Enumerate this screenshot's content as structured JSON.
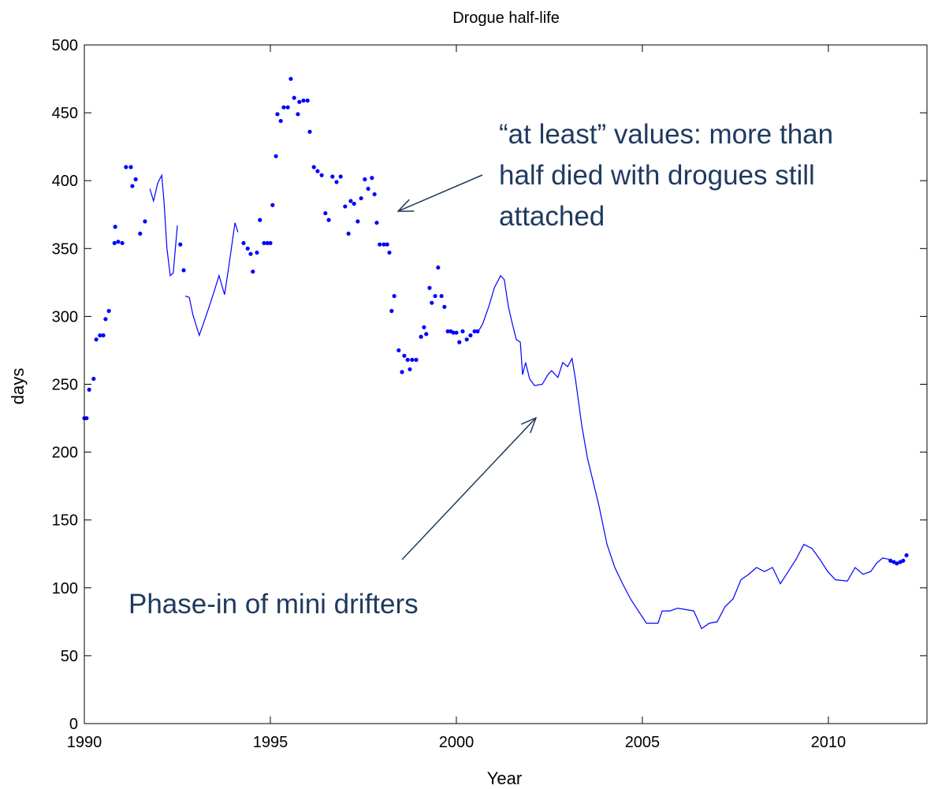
{
  "chart_data": {
    "type": "line",
    "title": "Drogue half-life",
    "xlabel": "Year",
    "ylabel": "days",
    "xlim": [
      1990,
      2012.65
    ],
    "ylim": [
      0,
      500
    ],
    "xticks": [
      1990,
      1995,
      2000,
      2005,
      2010
    ],
    "yticks": [
      0,
      50,
      100,
      150,
      200,
      250,
      300,
      350,
      400,
      450,
      500
    ],
    "grid": false,
    "series": [
      {
        "style": "line",
        "color": "#0000ff",
        "x": [
          1991.76,
          1991.86,
          1991.97,
          1992.08,
          1992.14,
          1992.22,
          1992.31,
          1992.39,
          1992.5,
          null,
          1992.71,
          1992.82,
          1992.92,
          1993.09,
          1993.28,
          1993.45,
          1993.62,
          1993.77,
          1993.88,
          1994.05,
          1994.13,
          null,
          2000.59,
          2000.7,
          2000.87,
          2001.02,
          2001.19,
          2001.29,
          2001.4,
          2001.5,
          2001.61,
          2001.72,
          2001.78,
          2001.86,
          2001.97,
          2002.1,
          2002.31,
          2002.46,
          2002.56,
          2002.73,
          2002.86,
          2002.99,
          2003.11,
          2003.2,
          2003.37,
          2003.52,
          2003.67,
          2003.83,
          2004.05,
          2004.26,
          2004.47,
          2004.68,
          2004.89,
          2005.11,
          2005.42,
          2005.53,
          2005.74,
          2005.95,
          2006.17,
          2006.38,
          2006.48,
          2006.59,
          2006.8,
          2007.01,
          2007.22,
          2007.44,
          2007.65,
          2007.86,
          2008.07,
          2008.28,
          2008.5,
          2008.71,
          2008.92,
          2009.13,
          2009.34,
          2009.56,
          2009.77,
          2009.98,
          2010.19,
          2010.51,
          2010.72,
          2010.93,
          2011.14,
          2011.29,
          2011.46,
          2011.63
        ],
        "values": [
          394,
          385,
          398,
          404,
          385,
          350,
          330,
          332,
          367,
          null,
          315,
          314,
          301,
          286,
          301,
          315,
          330,
          316,
          336,
          369,
          362,
          null,
          289,
          294,
          307,
          321,
          330,
          327,
          307,
          295,
          283,
          281,
          257,
          266,
          254,
          249,
          250,
          257,
          260,
          255,
          266,
          263,
          269,
          254,
          220,
          196,
          179,
          161,
          132,
          115,
          103,
          92,
          83,
          74,
          74,
          83,
          83,
          85,
          84,
          83,
          77,
          70,
          74,
          75,
          86,
          92,
          106,
          110,
          115,
          112,
          115,
          103,
          112,
          121,
          132,
          129,
          121,
          112,
          106,
          105,
          115,
          110,
          112,
          118,
          122,
          121
        ]
      },
      {
        "style": "markers",
        "color": "#0000ff",
        "x": [
          1990.0,
          1990.06,
          1990.13,
          1990.25,
          1990.32,
          1990.42,
          1990.51,
          1990.57,
          1990.66,
          1990.81,
          1990.83,
          1990.91,
          1991.02,
          1991.12,
          1991.25,
          1991.29,
          1991.38,
          1991.5,
          1991.63,
          1992.58,
          1992.67,
          1994.28,
          1994.39,
          1994.47,
          1994.53,
          1994.64,
          1994.72,
          1994.83,
          1994.92,
          1995.0,
          1995.06,
          1995.15,
          1995.19,
          1995.28,
          1995.36,
          1995.47,
          1995.55,
          1995.64,
          1995.74,
          1995.78,
          1995.89,
          1996.0,
          1996.06,
          1996.17,
          1996.27,
          1996.38,
          1996.48,
          1996.57,
          1996.67,
          1996.78,
          1996.89,
          1997.01,
          1997.1,
          1997.16,
          1997.25,
          1997.35,
          1997.44,
          1997.54,
          1997.63,
          1997.73,
          1997.8,
          1997.86,
          1997.94,
          1998.05,
          1998.14,
          1998.2,
          1998.26,
          1998.33,
          1998.45,
          1998.54,
          1998.6,
          1998.69,
          1998.75,
          1998.81,
          1998.92,
          1999.05,
          1999.13,
          1999.19,
          1999.28,
          1999.34,
          1999.43,
          1999.51,
          1999.6,
          1999.68,
          1999.77,
          1999.85,
          1999.92,
          2000.0,
          2000.08,
          2000.17,
          2000.28,
          2000.38,
          2000.49,
          2000.57,
          2011.67,
          2011.76,
          2011.84,
          2011.93,
          2012.01,
          2012.1
        ],
        "values": [
          225,
          225,
          246,
          254,
          283,
          286,
          286,
          298,
          304,
          354,
          366,
          355,
          354,
          410,
          410,
          396,
          401,
          361,
          370,
          353,
          334,
          354,
          350,
          346,
          333,
          347,
          371,
          354,
          354,
          354,
          382,
          418,
          449,
          444,
          454,
          454,
          475,
          461,
          449,
          458,
          459,
          459,
          436,
          410,
          407,
          404,
          376,
          371,
          403,
          399,
          403,
          381,
          361,
          385,
          383,
          370,
          387,
          401,
          394,
          402,
          390,
          369,
          353,
          353,
          353,
          347,
          304,
          315,
          275,
          259,
          271,
          268,
          261,
          268,
          268,
          285,
          292,
          287,
          321,
          310,
          315,
          336,
          315,
          307,
          289,
          289,
          288,
          288,
          281,
          289,
          283,
          286,
          289,
          289,
          120,
          119,
          118,
          119,
          120,
          124
        ]
      }
    ],
    "annotations": [
      {
        "lines": [
          "“at least” values: more than",
          "half died with drogues still",
          "attached"
        ]
      },
      {
        "lines": [
          "Phase-in of mini drifters"
        ]
      }
    ]
  }
}
